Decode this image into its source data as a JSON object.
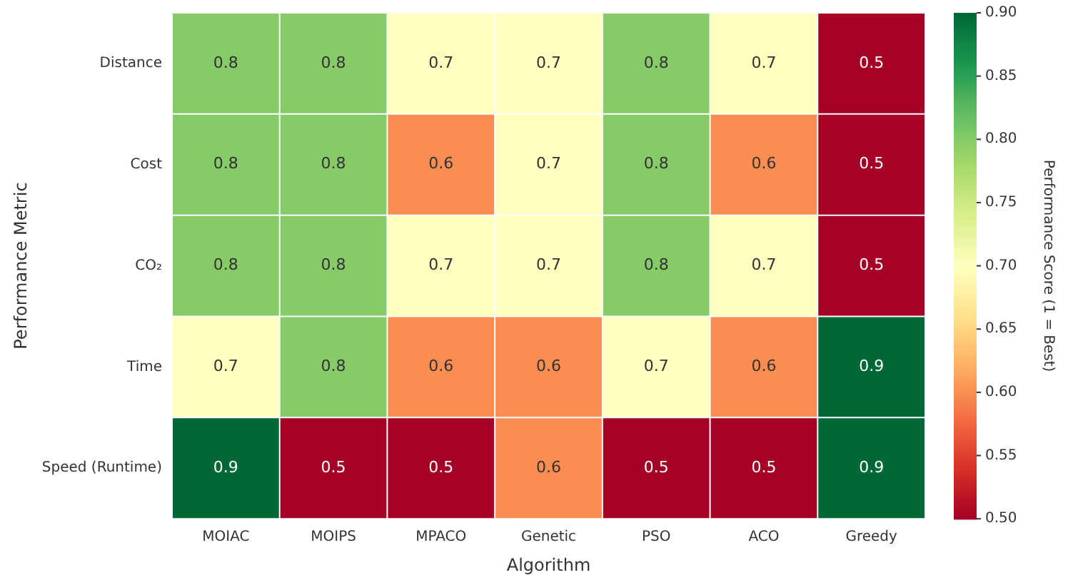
{
  "chart_data": {
    "type": "heatmap",
    "xlabel": "Algorithm",
    "ylabel": "Performance Metric",
    "clabel": "Performance Score (1 = Best)",
    "categories": [
      "MOIAC",
      "MOIPS",
      "MPACO",
      "Genetic",
      "PSO",
      "ACO",
      "Greedy"
    ],
    "y_categories": [
      "Distance",
      "Cost",
      "CO₂",
      "Time",
      "Speed (Runtime)"
    ],
    "cells": [
      [
        0.8,
        0.8,
        0.7,
        0.7,
        0.8,
        0.7,
        0.5
      ],
      [
        0.8,
        0.8,
        0.6,
        0.7,
        0.8,
        0.6,
        0.5
      ],
      [
        0.8,
        0.8,
        0.7,
        0.7,
        0.8,
        0.7,
        0.5
      ],
      [
        0.7,
        0.8,
        0.6,
        0.6,
        0.7,
        0.6,
        0.9
      ],
      [
        0.9,
        0.5,
        0.5,
        0.6,
        0.5,
        0.5,
        0.9
      ]
    ],
    "data_labels": true,
    "clim": [
      0.5,
      0.9
    ],
    "cticks": [
      {
        "value": 0.5,
        "label": "0.50"
      },
      {
        "value": 0.55,
        "label": "0.55"
      },
      {
        "value": 0.6,
        "label": "0.60"
      },
      {
        "value": 0.65,
        "label": "0.65"
      },
      {
        "value": 0.7,
        "label": "0.70"
      },
      {
        "value": 0.75,
        "label": "0.75"
      },
      {
        "value": 0.8,
        "label": "0.80"
      },
      {
        "value": 0.85,
        "label": "0.85"
      },
      {
        "value": 0.9,
        "label": "0.90"
      }
    ]
  }
}
